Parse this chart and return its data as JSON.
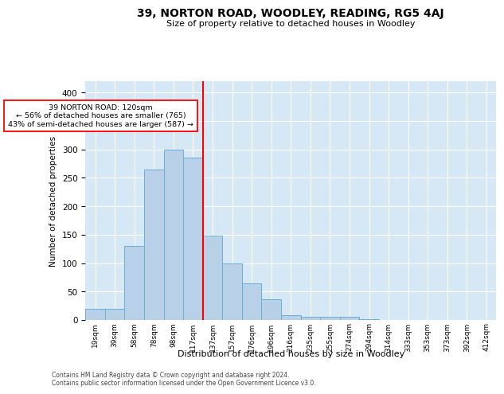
{
  "title": "39, NORTON ROAD, WOODLEY, READING, RG5 4AJ",
  "subtitle": "Size of property relative to detached houses in Woodley",
  "xlabel": "Distribution of detached houses by size in Woodley",
  "ylabel": "Number of detached properties",
  "footnote1": "Contains HM Land Registry data © Crown copyright and database right 2024.",
  "footnote2": "Contains public sector information licensed under the Open Government Licence v3.0.",
  "annotation_title": "39 NORTON ROAD: 120sqm",
  "annotation_line1": "← 56% of detached houses are smaller (765)",
  "annotation_line2": "43% of semi-detached houses are larger (587) →",
  "bar_color": "#b8d0e8",
  "bar_edge_color": "#6aaed6",
  "vline_color": "red",
  "vline_x": 6,
  "plot_bg_color": "#d6e8f5",
  "categories": [
    "19sqm",
    "39sqm",
    "58sqm",
    "78sqm",
    "98sqm",
    "117sqm",
    "137sqm",
    "157sqm",
    "176sqm",
    "196sqm",
    "216sqm",
    "235sqm",
    "255sqm",
    "274sqm",
    "294sqm",
    "314sqm",
    "333sqm",
    "353sqm",
    "373sqm",
    "392sqm",
    "412sqm"
  ],
  "bar_heights": [
    20,
    20,
    130,
    265,
    300,
    285,
    148,
    100,
    65,
    37,
    8,
    5,
    5,
    5,
    2,
    0,
    0,
    0,
    0,
    0,
    0
  ],
  "ylim": [
    0,
    420
  ],
  "yticks": [
    0,
    50,
    100,
    150,
    200,
    250,
    300,
    350,
    400
  ]
}
